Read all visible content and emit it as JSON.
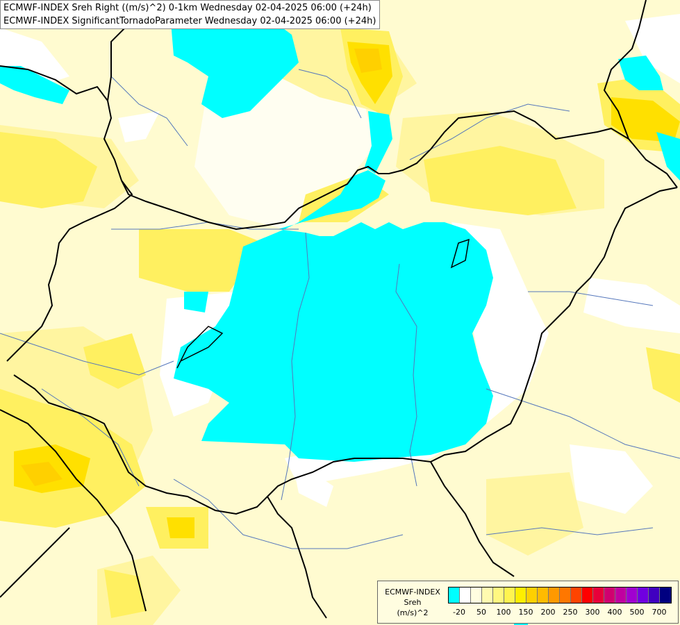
{
  "header": {
    "line1": "ECMWF-INDEX Sreh Right ((m/s)^2) 0-1km Wednesday 02-04-2025 06:00 (+24h)",
    "line2": "ECMWF-INDEX SignificantTornadoParameter Wednesday 02-04-2025 06:00 (+24h)"
  },
  "legend": {
    "title": "ECMWF-INDEX",
    "parameter": "Sreh",
    "unit": "(m/s)^2",
    "colors": [
      "#00ffff",
      "#ffffff",
      "#fffde0",
      "#fffbb0",
      "#fff880",
      "#fff450",
      "#ffee00",
      "#ffd000",
      "#ffbb00",
      "#ff9900",
      "#ff7700",
      "#ff4400",
      "#ff0000",
      "#e8003a",
      "#d00070",
      "#c000a0",
      "#a000d0",
      "#7000e0",
      "#4000c0",
      "#000080"
    ],
    "ticks": [
      "-20",
      "50",
      "100",
      "150",
      "200",
      "250",
      "300",
      "400",
      "500",
      "700"
    ]
  },
  "map_colors": {
    "background": "#fffbd0",
    "cyan": "#00ffff",
    "white": "#ffffff",
    "pale": "#fffbb0",
    "yellow": "#fff060",
    "gold": "#ffe000",
    "orange": "#ffd000",
    "borders": "#000000",
    "rivers": "#5577bb"
  }
}
